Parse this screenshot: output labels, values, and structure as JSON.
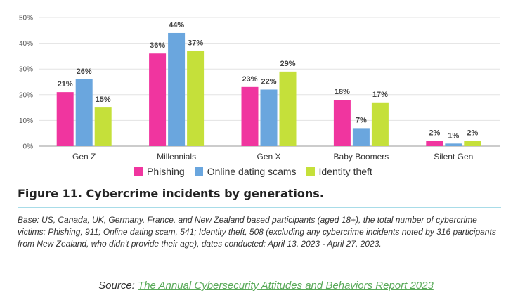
{
  "chart_data": {
    "type": "bar",
    "title": "Figure 11. Cybercrime incidents by generations.",
    "categories": [
      "Gen Z",
      "Millennials",
      "Gen X",
      "Baby Boomers",
      "Silent Gen"
    ],
    "series": [
      {
        "name": "Phishing",
        "color": "#f0359f",
        "values": [
          21,
          36,
          23,
          18,
          2
        ]
      },
      {
        "name": "Online dating scams",
        "color": "#6aa6de",
        "values": [
          26,
          44,
          22,
          7,
          1
        ]
      },
      {
        "name": "Identity theft",
        "color": "#c5e03a",
        "values": [
          15,
          37,
          29,
          17,
          2
        ]
      }
    ],
    "yticks": [
      "0%",
      "10%",
      "20%",
      "30%",
      "40%",
      "50%"
    ],
    "ylim": [
      0,
      50
    ],
    "unit": "%",
    "grid": true,
    "legend_position": "bottom"
  },
  "caption": {
    "base_note": "Base: US, Canada, UK, Germany, France, and New Zealand based participants (aged 18+), the total number of cybercrime victims: Phishing, 911; Online dating scam, 541; Identity theft, 508 (excluding any cybercrime incidents noted by 316 participants from New Zealand, who didn't provide their age), dates conducted: April 13, 2023 - April 27, 2023.",
    "source_prefix": "Source: ",
    "source_link_text": "The Annual Cybersecurity Attitudes and Behaviors Report 2023"
  }
}
